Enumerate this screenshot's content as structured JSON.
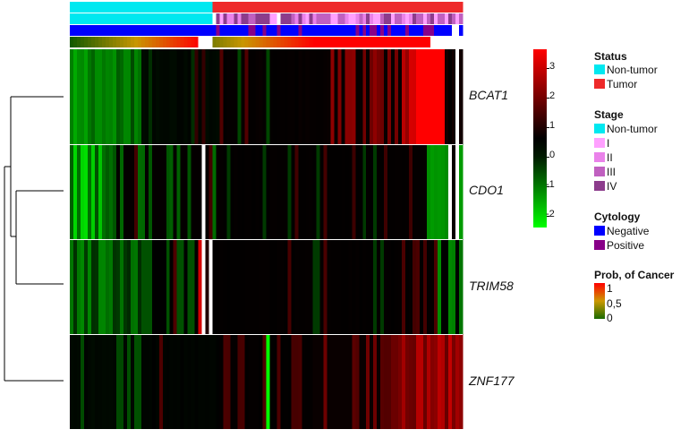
{
  "chart_data": {
    "type": "heatmap",
    "title": "",
    "rows": [
      "BCAT1",
      "CDO1",
      "TRIM58",
      "ZNF177"
    ],
    "row_dendrogram": "(((BCAT1),(CDO1,TRIM58)),ZNF177)",
    "n_samples": 110,
    "n_nontumor": 40,
    "colorbar": {
      "ticks": [
        "3",
        "2",
        "1",
        "0",
        "-1",
        "-2"
      ],
      "range": [
        -2.5,
        3.5
      ],
      "colors": {
        "low": "#00ff00",
        "mid": "#000000",
        "high": "#ff0000"
      },
      "missing_color": "#ffffff"
    },
    "annotation_tracks": {
      "status": {
        "Non-tumor": 40,
        "Tumor": 70
      },
      "stage": [
        {
          "label": "Non-tumor",
          "count": 40
        },
        {
          "label": "I",
          "count": 18
        },
        {
          "label": "II",
          "count": 20
        },
        {
          "label": "III",
          "count": 18
        },
        {
          "label": "IV",
          "count": 14
        }
      ],
      "cytology": {
        "Negative": 88,
        "Positive": 22
      },
      "prob_of_cancer": "gradient 0 to 1 ordered by sample"
    },
    "values": {
      "BCAT1": "low (dark green ~ -1.5) for first ~20 samples, near 0 mid, rising to ~3 (bright red) at samples ~95-106",
      "CDO1": "mostly ~0 with bright green (~-2) spots in first 10 samples, white missing values around 37 and 105-107",
      "TRIM58": "mostly ~0, green (~-1.2) in early samples, white missing at 36-40",
      "ZNF177": "near 0 for early samples, red (~1.5-2) across tumor samples ~92-110, green spike at ~56"
    }
  },
  "legend": {
    "status": {
      "title": "Status",
      "items": [
        {
          "label": "Non-tumor",
          "color": "#00e8f0"
        },
        {
          "label": "Tumor",
          "color": "#ee2a2a"
        }
      ]
    },
    "stage": {
      "title": "Stage",
      "items": [
        {
          "label": "Non-tumor",
          "color": "#00e8f0"
        },
        {
          "label": "I",
          "color": "#ffa0ff"
        },
        {
          "label": "II",
          "color": "#ea82ea"
        },
        {
          "label": "III",
          "color": "#c060c0"
        },
        {
          "label": "IV",
          "color": "#8c3c8c"
        }
      ]
    },
    "cytology": {
      "title": "Cytology",
      "items": [
        {
          "label": "Negative",
          "color": "#0000ff"
        },
        {
          "label": "Positive",
          "color": "#880088"
        }
      ]
    },
    "prob": {
      "title": "Prob, of Cancer",
      "ticks": [
        "1",
        "0,5",
        "0"
      ],
      "colors": [
        "#ff0000",
        "#cc9900",
        "#1a6a00"
      ]
    }
  }
}
